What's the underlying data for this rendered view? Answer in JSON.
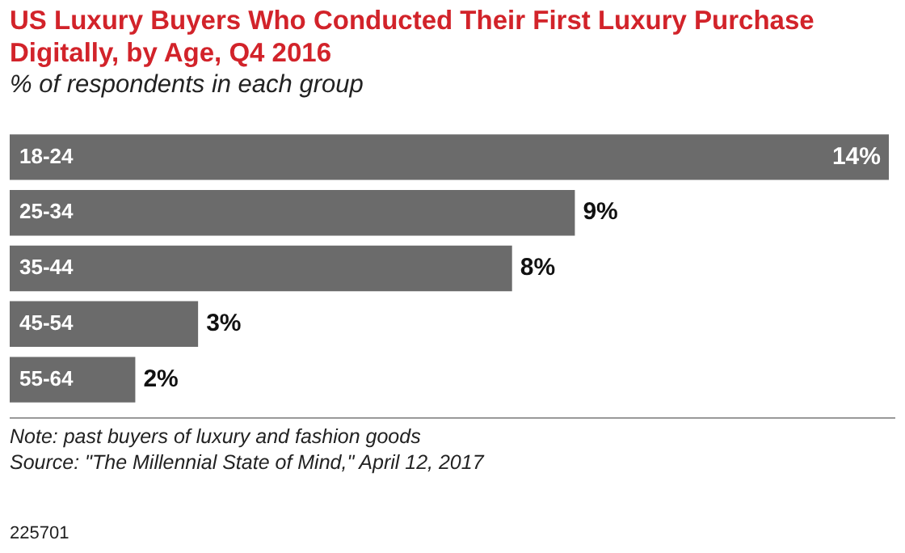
{
  "chart_data": {
    "type": "bar",
    "orientation": "horizontal",
    "title": "US Luxury Buyers Who Conducted Their First Luxury Purchase Digitally, by Age, Q4 2016",
    "subtitle": "% of respondents in each group",
    "categories": [
      "18-24",
      "25-34",
      "35-44",
      "45-54",
      "55-64"
    ],
    "values": [
      14,
      9,
      8,
      3,
      2
    ],
    "value_labels": [
      "14%",
      "9%",
      "8%",
      "3%",
      "2%"
    ],
    "color": "#6b6b6b",
    "legend": false,
    "tick_labels": "y",
    "annotations": [
      "Note: past buyers of luxury and fashion goods",
      "Source: \"The Millennial State of Mind,\" April 12, 2017",
      "225701"
    ]
  }
}
